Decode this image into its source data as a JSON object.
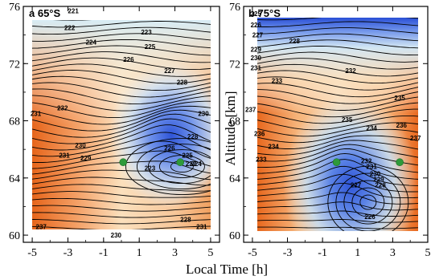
{
  "chart_data": [
    {
      "type": "heatmap",
      "panel": "a",
      "title": "a  65°S",
      "xlabel": "Local Time [h]",
      "ylabel": "",
      "xlim": [
        -5.5,
        5.5
      ],
      "ylim": [
        59.5,
        76
      ],
      "xticks": [
        "-5",
        "-3",
        "-1",
        "1",
        "3",
        "5"
      ],
      "yticks": [
        "60",
        "64",
        "68",
        "72",
        "76"
      ],
      "colors": {
        "warm": "#e8681e",
        "mid": "#f8e7c8",
        "cool": "#2f55d8"
      },
      "contour_labels": [
        {
          "text": "221",
          "x": -2.7,
          "y": 75.7
        },
        {
          "text": "222",
          "x": -2.9,
          "y": 74.5
        },
        {
          "text": "223",
          "x": 1.4,
          "y": 74.2
        },
        {
          "text": "224",
          "x": -1.7,
          "y": 73.5
        },
        {
          "text": "225",
          "x": 1.6,
          "y": 73.2
        },
        {
          "text": "226",
          "x": 0.4,
          "y": 72.3
        },
        {
          "text": "227",
          "x": 2.7,
          "y": 71.5
        },
        {
          "text": "228",
          "x": 3.4,
          "y": 70.7
        },
        {
          "text": "231",
          "x": -4.8,
          "y": 68.5
        },
        {
          "text": "232",
          "x": -3.3,
          "y": 68.9
        },
        {
          "text": "230",
          "x": 4.6,
          "y": 68.5
        },
        {
          "text": "230",
          "x": -2.3,
          "y": 66.3
        },
        {
          "text": "231",
          "x": -3.2,
          "y": 65.6
        },
        {
          "text": "229",
          "x": -2.0,
          "y": 65.4
        },
        {
          "text": "228",
          "x": 4.0,
          "y": 66.9
        },
        {
          "text": "226",
          "x": 2.7,
          "y": 66.1
        },
        {
          "text": "225",
          "x": 3.7,
          "y": 65.6
        },
        {
          "text": "224",
          "x": 4.2,
          "y": 65.0
        },
        {
          "text": "223",
          "x": 1.6,
          "y": 64.7
        },
        {
          "text": "222",
          "x": 3.9,
          "y": 65.0
        },
        {
          "text": "237",
          "x": -4.5,
          "y": 60.6
        },
        {
          "text": "230",
          "x": -0.3,
          "y": 60.0
        },
        {
          "text": "228",
          "x": 3.6,
          "y": 61.1
        },
        {
          "text": "231",
          "x": 4.5,
          "y": 60.6
        }
      ],
      "markers": [
        {
          "x": 0.1,
          "y": 65.1
        },
        {
          "x": 3.3,
          "y": 65.1
        }
      ]
    },
    {
      "type": "heatmap",
      "panel": "b",
      "title": "b  75°S",
      "xlabel": "Local Time [h]",
      "ylabel": "Altitude [km]",
      "xlim": [
        -5.5,
        5
      ],
      "ylim": [
        59.5,
        76
      ],
      "xticks": [
        "-5",
        "-3",
        "-1",
        "1",
        "3",
        "5"
      ],
      "yticks": [
        "60",
        "64",
        "68",
        "72",
        "76"
      ],
      "colors": {
        "warm": "#e8681e",
        "mid": "#f8e7c8",
        "cool": "#2f55d8"
      },
      "contour_labels": [
        {
          "text": "225",
          "x": -4.8,
          "y": 75.5
        },
        {
          "text": "226",
          "x": -4.8,
          "y": 74.7
        },
        {
          "text": "227",
          "x": -4.7,
          "y": 74.0
        },
        {
          "text": "228",
          "x": -2.6,
          "y": 73.6
        },
        {
          "text": "229",
          "x": -4.8,
          "y": 73.0
        },
        {
          "text": "230",
          "x": -4.8,
          "y": 72.4
        },
        {
          "text": "231",
          "x": -4.8,
          "y": 71.7
        },
        {
          "text": "232",
          "x": 0.6,
          "y": 71.5
        },
        {
          "text": "233",
          "x": -3.6,
          "y": 70.8
        },
        {
          "text": "237",
          "x": -5.1,
          "y": 68.8
        },
        {
          "text": "236",
          "x": -4.6,
          "y": 67.1
        },
        {
          "text": "235",
          "x": 0.4,
          "y": 68.1
        },
        {
          "text": "235",
          "x": 3.4,
          "y": 69.6
        },
        {
          "text": "234",
          "x": 1.8,
          "y": 67.5
        },
        {
          "text": "236",
          "x": 3.5,
          "y": 67.7
        },
        {
          "text": "237",
          "x": 4.3,
          "y": 66.8
        },
        {
          "text": "234",
          "x": -3.8,
          "y": 66.2
        },
        {
          "text": "233",
          "x": -4.5,
          "y": 65.3
        },
        {
          "text": "232",
          "x": 1.5,
          "y": 65.2
        },
        {
          "text": "231",
          "x": 1.8,
          "y": 64.8
        },
        {
          "text": "230",
          "x": 2.0,
          "y": 64.3
        },
        {
          "text": "229",
          "x": 2.2,
          "y": 63.9
        },
        {
          "text": "228",
          "x": 2.3,
          "y": 63.5
        },
        {
          "text": "227",
          "x": 0.9,
          "y": 63.5
        },
        {
          "text": "226",
          "x": 1.7,
          "y": 61.3
        }
      ],
      "markers": [
        {
          "x": -0.2,
          "y": 65.1
        },
        {
          "x": 3.4,
          "y": 65.1
        }
      ]
    }
  ]
}
